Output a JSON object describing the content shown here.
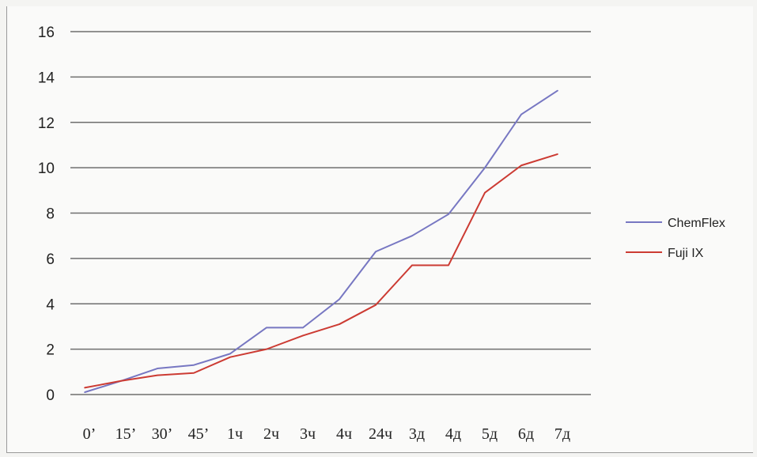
{
  "chart_data": {
    "type": "line",
    "title": "",
    "xlabel": "",
    "ylabel": "",
    "categories": [
      "0’",
      "15’",
      "30’",
      "45’",
      "1ч",
      "2ч",
      "3ч",
      "4ч",
      "24ч",
      "3д",
      "4д",
      "5д",
      "6д",
      "7д"
    ],
    "ylim": [
      0,
      16
    ],
    "yticks": [
      0,
      2,
      4,
      6,
      8,
      10,
      12,
      14,
      16
    ],
    "grid": true,
    "legend_position": "right",
    "series": [
      {
        "name": "ChemFlex",
        "color": "#7777c2",
        "values": [
          0.1,
          0.6,
          1.15,
          1.3,
          1.8,
          2.95,
          2.95,
          4.2,
          6.3,
          7.0,
          7.95,
          10.0,
          12.35,
          13.4
        ]
      },
      {
        "name": "Fuji IX",
        "color": "#cc3b33",
        "values": [
          0.3,
          0.6,
          0.85,
          0.95,
          1.65,
          2.0,
          2.6,
          3.1,
          3.95,
          5.7,
          5.7,
          8.9,
          10.1,
          10.6
        ]
      }
    ]
  }
}
